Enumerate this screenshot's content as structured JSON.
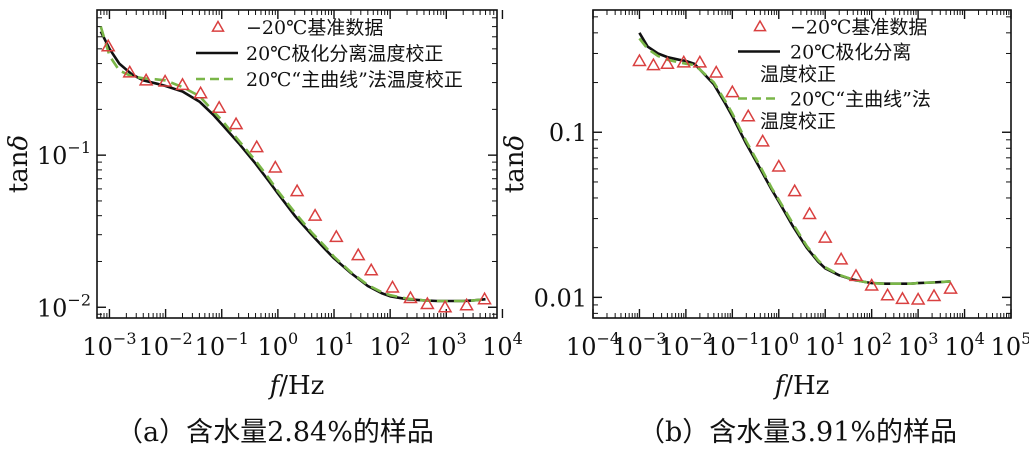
{
  "chart_data": [
    {
      "type": "scatter+line",
      "caption": "（a）含水量2.84%的样品",
      "xlabel": "f/Hz",
      "ylabel": "tanδ",
      "x_scale": "log",
      "y_scale": "log",
      "xlim": [
        0.0006,
        8000
      ],
      "ylim": [
        0.0085,
        0.9
      ],
      "x_ticks": [
        {
          "value": 0.001,
          "base": "10",
          "exp": "−3"
        },
        {
          "value": 0.01,
          "base": "10",
          "exp": "−2"
        },
        {
          "value": 0.1,
          "base": "10",
          "exp": "−1"
        },
        {
          "value": 1,
          "base": "10",
          "exp": "0"
        },
        {
          "value": 10,
          "base": "10",
          "exp": "1"
        },
        {
          "value": 100,
          "base": "10",
          "exp": "2"
        },
        {
          "value": 1000,
          "base": "10",
          "exp": "3"
        },
        {
          "value": 10000,
          "base": "10",
          "exp": "4"
        }
      ],
      "y_ticks": [
        {
          "value": 0.1,
          "base": "10",
          "exp": "−1"
        },
        {
          "value": 0.01,
          "base": "10",
          "exp": "−2"
        }
      ],
      "legend_position": "top-right",
      "series": [
        {
          "name": "−20℃基准数据",
          "kind": "scatter",
          "marker": "triangle",
          "color": "#d94040",
          "x": [
            0.00095,
            0.0023,
            0.0045,
            0.0098,
            0.02,
            0.042,
            0.09,
            0.18,
            0.42,
            0.9,
            2.2,
            4.6,
            11,
            27,
            46,
            110,
            230,
            460,
            950,
            2300,
            4800
          ],
          "y": [
            0.52,
            0.35,
            0.31,
            0.305,
            0.29,
            0.255,
            0.205,
            0.16,
            0.113,
            0.083,
            0.058,
            0.04,
            0.029,
            0.022,
            0.0175,
            0.0135,
            0.0115,
            0.0105,
            0.01,
            0.0103,
            0.0113
          ]
        },
        {
          "name": "20℃极化分离温度校正",
          "kind": "line",
          "color": "#111111",
          "dash": "solid",
          "x": [
            0.0007,
            0.001,
            0.0015,
            0.0025,
            0.004,
            0.007,
            0.01,
            0.02,
            0.04,
            0.07,
            0.1,
            0.2,
            0.4,
            0.7,
            1,
            2,
            4,
            7,
            10,
            20,
            40,
            70,
            100,
            200,
            400,
            700,
            1000,
            2000,
            3000,
            4000,
            5000
          ],
          "y": [
            0.65,
            0.5,
            0.4,
            0.34,
            0.31,
            0.295,
            0.285,
            0.262,
            0.225,
            0.185,
            0.16,
            0.12,
            0.088,
            0.067,
            0.056,
            0.04,
            0.03,
            0.024,
            0.021,
            0.0168,
            0.0138,
            0.0124,
            0.0118,
            0.0113,
            0.0111,
            0.011,
            0.011,
            0.011,
            0.0111,
            0.0112,
            0.0113
          ]
        },
        {
          "name": "20℃“主曲线”法温度校正",
          "kind": "line",
          "color": "#7ab648",
          "dash": "dashed",
          "x": [
            0.0007,
            0.001,
            0.0015,
            0.0025,
            0.004,
            0.007,
            0.01,
            0.02,
            0.04,
            0.07,
            0.1,
            0.2,
            0.4,
            0.7,
            1,
            2,
            4,
            7,
            10,
            20,
            40,
            70,
            100,
            200,
            400,
            700,
            1000,
            2000,
            3000,
            4000,
            5000
          ],
          "y": [
            0.7,
            0.45,
            0.36,
            0.33,
            0.32,
            0.315,
            0.31,
            0.28,
            0.245,
            0.195,
            0.17,
            0.125,
            0.092,
            0.07,
            0.058,
            0.042,
            0.031,
            0.025,
            0.0215,
            0.017,
            0.014,
            0.0126,
            0.012,
            0.0114,
            0.0111,
            0.011,
            0.011,
            0.011,
            0.0111,
            0.0112,
            0.0113
          ]
        }
      ]
    },
    {
      "type": "scatter+line",
      "caption": "（b）含水量3.91%的样品",
      "xlabel": "f/Hz",
      "ylabel": "tanδ",
      "x_scale": "log",
      "y_scale": "log",
      "xlim": [
        0.0001,
        100000
      ],
      "ylim": [
        0.0075,
        0.55
      ],
      "x_ticks": [
        {
          "value": 0.0001,
          "base": "10",
          "exp": "−4"
        },
        {
          "value": 0.001,
          "base": "10",
          "exp": "−3"
        },
        {
          "value": 0.01,
          "base": "10",
          "exp": "−2"
        },
        {
          "value": 0.1,
          "base": "10",
          "exp": "−1"
        },
        {
          "value": 1,
          "base": "10",
          "exp": "0"
        },
        {
          "value": 10,
          "base": "10",
          "exp": "1"
        },
        {
          "value": 100,
          "base": "10",
          "exp": "2"
        },
        {
          "value": 1000,
          "base": "10",
          "exp": "3"
        },
        {
          "value": 10000,
          "base": "10",
          "exp": "4"
        },
        {
          "value": 100000,
          "base": "10",
          "exp": "5"
        }
      ],
      "y_ticks": [
        {
          "value": 0.1,
          "label": "0.1"
        },
        {
          "value": 0.01,
          "label": "0.01"
        }
      ],
      "legend_position": "top-right",
      "series": [
        {
          "name": "−20℃基准数据",
          "kind": "scatter",
          "marker": "triangle",
          "color": "#d94040",
          "x": [
            0.001,
            0.002,
            0.004,
            0.009,
            0.02,
            0.045,
            0.1,
            0.22,
            0.45,
            1,
            2.2,
            4.6,
            10,
            22,
            46,
            100,
            220,
            460,
            1000,
            2200,
            5000
          ],
          "y": [
            0.27,
            0.255,
            0.26,
            0.265,
            0.265,
            0.23,
            0.175,
            0.125,
            0.088,
            0.062,
            0.044,
            0.032,
            0.023,
            0.017,
            0.0135,
            0.0118,
            0.0103,
            0.0098,
            0.0097,
            0.0102,
            0.0113
          ]
        },
        {
          "name": "20℃极化分离温度校正",
          "kind": "line",
          "color": "#111111",
          "dash": "solid",
          "x": [
            0.001,
            0.0015,
            0.0025,
            0.004,
            0.007,
            0.01,
            0.015,
            0.02,
            0.04,
            0.07,
            0.1,
            0.2,
            0.4,
            0.7,
            1,
            2,
            4,
            7,
            10,
            20,
            40,
            70,
            100,
            200,
            400,
            700,
            1000,
            2000,
            5000
          ],
          "y": [
            0.4,
            0.33,
            0.3,
            0.285,
            0.275,
            0.27,
            0.26,
            0.24,
            0.195,
            0.15,
            0.125,
            0.085,
            0.06,
            0.045,
            0.038,
            0.027,
            0.02,
            0.0165,
            0.015,
            0.0136,
            0.0128,
            0.0124,
            0.0122,
            0.0121,
            0.0121,
            0.0121,
            0.0122,
            0.0123,
            0.0125
          ]
        },
        {
          "name": "20℃“主曲线”法温度校正",
          "kind": "line",
          "color": "#7ab648",
          "dash": "dashed",
          "x": [
            0.001,
            0.0015,
            0.0025,
            0.004,
            0.007,
            0.01,
            0.015,
            0.02,
            0.04,
            0.07,
            0.1,
            0.2,
            0.4,
            0.7,
            1,
            2,
            4,
            7,
            10,
            20,
            40,
            70,
            100,
            200,
            400,
            700,
            1000,
            2000,
            5000
          ],
          "y": [
            0.37,
            0.32,
            0.29,
            0.275,
            0.265,
            0.26,
            0.255,
            0.24,
            0.2,
            0.155,
            0.13,
            0.088,
            0.062,
            0.046,
            0.039,
            0.028,
            0.0205,
            0.0168,
            0.0152,
            0.0137,
            0.0128,
            0.0124,
            0.0122,
            0.0121,
            0.0121,
            0.0121,
            0.0122,
            0.0123,
            0.0125
          ]
        }
      ]
    }
  ]
}
